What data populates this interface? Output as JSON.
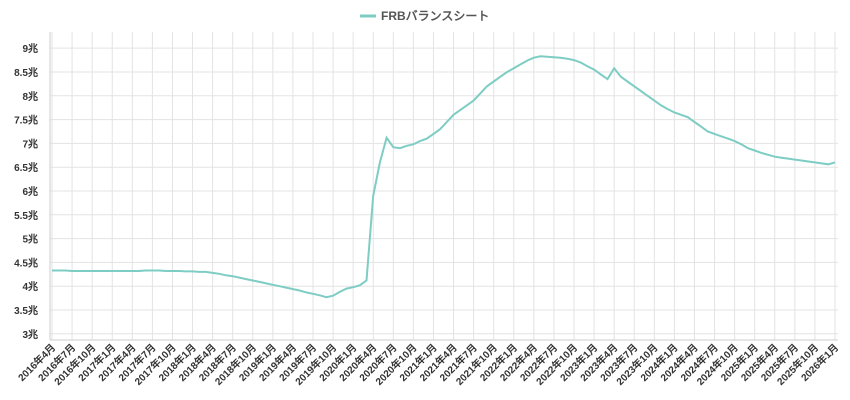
{
  "chart_data": {
    "type": "line",
    "categories": [
      "2016年4月",
      null,
      null,
      "2016年7月",
      null,
      null,
      "2016年10月",
      null,
      null,
      "2017年1月",
      null,
      null,
      "2017年4月",
      null,
      null,
      "2017年7月",
      null,
      null,
      "2017年10月",
      null,
      null,
      "2018年1月",
      null,
      null,
      "2018年4月",
      null,
      null,
      "2018年7月",
      null,
      null,
      "2018年10月",
      null,
      null,
      "2019年1月",
      null,
      null,
      "2019年4月",
      null,
      null,
      "2019年7月",
      null,
      null,
      "2019年10月",
      null,
      null,
      "2020年1月",
      null,
      null,
      "2020年4月",
      null,
      null,
      "2020年7月",
      null,
      null,
      "2020年10月",
      null,
      null,
      "2021年1月",
      null,
      null,
      "2021年4月",
      null,
      null,
      "2021年7月",
      null,
      null,
      "2021年10月",
      null,
      null,
      "2022年1月",
      null,
      null,
      "2022年4月",
      null,
      null,
      "2022年7月",
      null,
      null,
      "2022年10月",
      null,
      null,
      "2023年1月",
      null,
      null,
      "2023年4月",
      null,
      null,
      "2023年7月",
      null,
      null,
      "2023年10月",
      null,
      null,
      "2024年1月",
      null,
      null,
      "2024年4月",
      null,
      null,
      "2024年7月",
      null,
      null,
      "2024年10月",
      null,
      null,
      "2025年1月",
      null,
      null,
      "2025年4月",
      null,
      null,
      "2025年7月",
      null,
      null,
      "2025年10月",
      null,
      null,
      "2026年1月"
    ],
    "series": [
      {
        "name": "FRBバランスシート",
        "color": "#7ecdc4",
        "values": [
          4.33,
          4.33,
          4.33,
          4.32,
          4.32,
          4.32,
          4.32,
          4.32,
          4.32,
          4.32,
          4.32,
          4.32,
          4.32,
          4.32,
          4.33,
          4.33,
          4.33,
          4.32,
          4.32,
          4.32,
          4.31,
          4.31,
          4.3,
          4.3,
          4.28,
          4.26,
          4.23,
          4.21,
          4.18,
          4.15,
          4.12,
          4.09,
          4.06,
          4.03,
          4.0,
          3.97,
          3.94,
          3.91,
          3.87,
          3.84,
          3.81,
          3.77,
          3.8,
          3.88,
          3.95,
          3.98,
          4.02,
          4.12,
          5.9,
          6.6,
          7.12,
          6.92,
          6.9,
          6.95,
          6.98,
          7.05,
          7.1,
          7.2,
          7.3,
          7.45,
          7.6,
          7.7,
          7.8,
          7.9,
          8.05,
          8.2,
          8.3,
          8.4,
          8.5,
          8.58,
          8.66,
          8.74,
          8.8,
          8.83,
          8.82,
          8.81,
          8.8,
          8.78,
          8.75,
          8.7,
          8.62,
          8.55,
          8.45,
          8.35,
          8.58,
          8.4,
          8.3,
          8.2,
          8.1,
          8.0,
          7.9,
          7.8,
          7.72,
          7.65,
          7.6,
          7.55,
          7.45,
          7.35,
          7.25,
          7.2,
          7.15,
          7.1,
          7.05,
          6.98,
          6.9,
          6.85,
          6.8,
          6.76,
          6.72,
          6.7,
          6.68,
          6.66,
          6.64,
          6.62,
          6.6,
          6.58,
          6.56,
          6.6
        ]
      }
    ],
    "ylim": [
      2.87,
      9.34
    ],
    "yticks": [
      {
        "value": 3,
        "label": "3兆"
      },
      {
        "value": 3.5,
        "label": "3.5兆"
      },
      {
        "value": 4,
        "label": "4兆"
      },
      {
        "value": 4.5,
        "label": "4.5兆"
      },
      {
        "value": 5,
        "label": "5兆"
      },
      {
        "value": 5.5,
        "label": "5.5兆"
      },
      {
        "value": 6,
        "label": "6兆"
      },
      {
        "value": 6.5,
        "label": "6.5兆"
      },
      {
        "value": 7,
        "label": "7兆"
      },
      {
        "value": 7.5,
        "label": "7.5兆"
      },
      {
        "value": 8,
        "label": "8兆"
      },
      {
        "value": 8.5,
        "label": "8.5兆"
      },
      {
        "value": 9,
        "label": "9兆"
      }
    ],
    "grid": true
  }
}
